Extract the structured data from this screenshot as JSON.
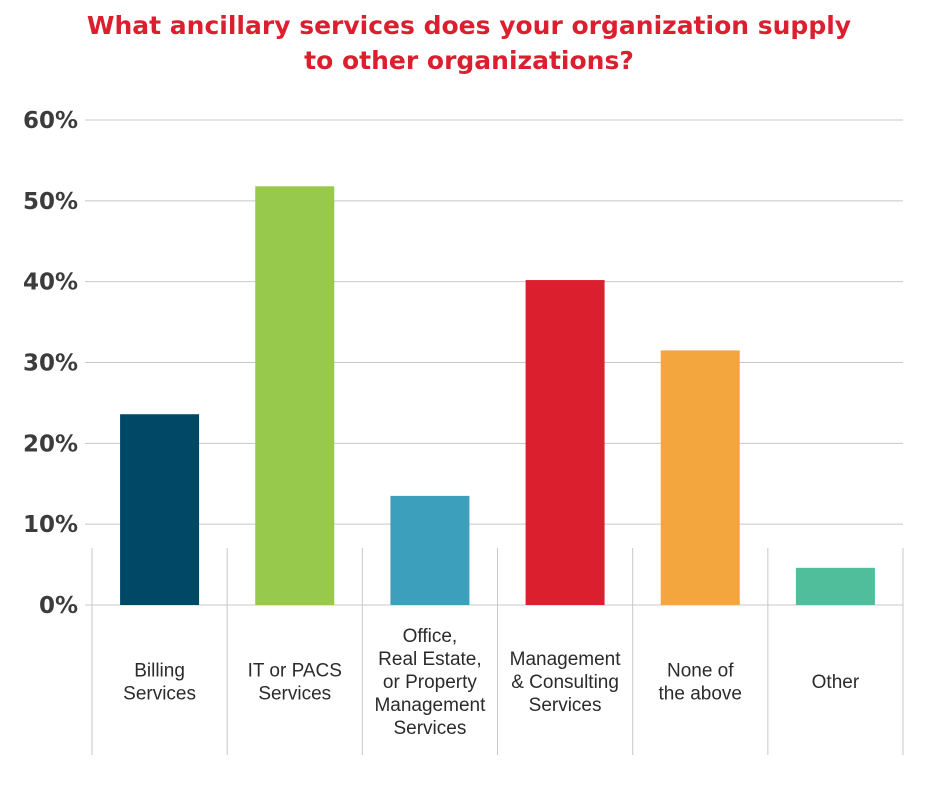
{
  "chart_data": {
    "type": "bar",
    "title_lines": [
      "What ancillary services does your organization supply",
      "to other organizations?"
    ],
    "categories": [
      [
        "Billing",
        "Services"
      ],
      [
        "IT or PACS",
        "Services"
      ],
      [
        "Office,",
        "Real Estate,",
        "or Property",
        "Management",
        "Services"
      ],
      [
        "Management",
        "& Consulting",
        "Services"
      ],
      [
        "None of",
        "the above"
      ],
      [
        "Other"
      ]
    ],
    "values": [
      23.6,
      51.8,
      13.5,
      40.2,
      31.5,
      4.6
    ],
    "colors": [
      "#004866",
      "#97c94d",
      "#3c9fbc",
      "#db1f2f",
      "#f3a63d",
      "#50be9b"
    ],
    "ylim": [
      0,
      60
    ],
    "yticks": [
      0,
      10,
      20,
      30,
      40,
      50,
      60
    ],
    "ytick_labels": [
      "0%",
      "10%",
      "20%",
      "30%",
      "40%",
      "50%",
      "60%"
    ],
    "grid": true,
    "xlabel": "",
    "ylabel": ""
  }
}
